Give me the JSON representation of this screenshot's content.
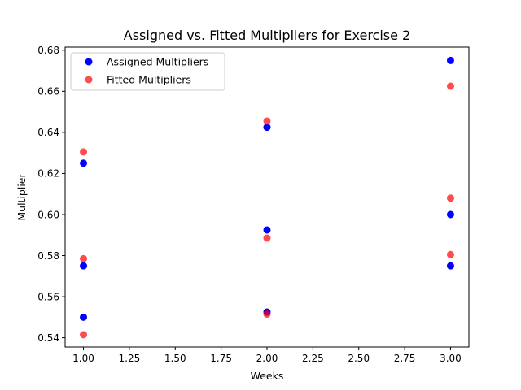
{
  "chart_data": {
    "type": "scatter",
    "title": "Assigned vs. Fitted Multipliers for Exercise 2",
    "xlabel": "Weeks",
    "ylabel": "Multiplier",
    "xlim": [
      0.9,
      3.1
    ],
    "ylim": [
      0.5355,
      0.6815
    ],
    "xticks": [
      1.0,
      1.25,
      1.5,
      1.75,
      2.0,
      2.25,
      2.5,
      2.75,
      3.0
    ],
    "xtick_labels": [
      "1.00",
      "1.25",
      "1.50",
      "1.75",
      "2.00",
      "2.25",
      "2.50",
      "2.75",
      "3.00"
    ],
    "yticks": [
      0.54,
      0.56,
      0.58,
      0.6,
      0.62,
      0.64,
      0.66,
      0.68
    ],
    "ytick_labels": [
      "0.54",
      "0.56",
      "0.58",
      "0.60",
      "0.62",
      "0.64",
      "0.66",
      "0.68"
    ],
    "grid": false,
    "legend": "top-left",
    "series": [
      {
        "name": "Assigned Multipliers",
        "color": "#0000ff",
        "opacity": 1.0,
        "points": [
          {
            "x": 1,
            "y": 0.625
          },
          {
            "x": 1,
            "y": 0.575
          },
          {
            "x": 1,
            "y": 0.55
          },
          {
            "x": 2,
            "y": 0.6425
          },
          {
            "x": 2,
            "y": 0.5925
          },
          {
            "x": 2,
            "y": 0.5525
          },
          {
            "x": 3,
            "y": 0.675
          },
          {
            "x": 3,
            "y": 0.6
          },
          {
            "x": 3,
            "y": 0.575
          }
        ]
      },
      {
        "name": "Fitted Multipliers",
        "color": "#ff0000",
        "opacity": 0.7,
        "points": [
          {
            "x": 1,
            "y": 0.6305
          },
          {
            "x": 1,
            "y": 0.5785
          },
          {
            "x": 1,
            "y": 0.5415
          },
          {
            "x": 2,
            "y": 0.6455
          },
          {
            "x": 2,
            "y": 0.5885
          },
          {
            "x": 2,
            "y": 0.5515
          },
          {
            "x": 3,
            "y": 0.6625
          },
          {
            "x": 3,
            "y": 0.608
          },
          {
            "x": 3,
            "y": 0.5805
          }
        ]
      }
    ]
  }
}
